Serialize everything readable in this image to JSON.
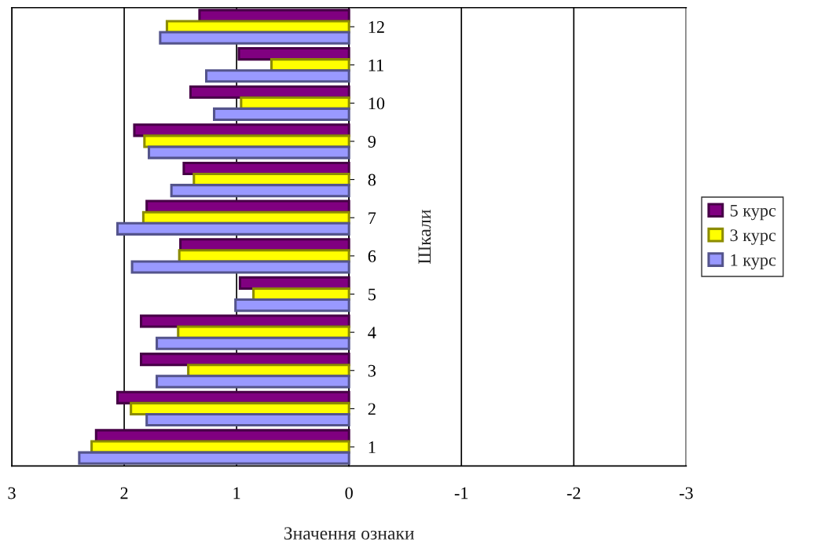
{
  "chart_data": {
    "type": "bar",
    "orientation": "horizontal",
    "xlabel": "Значення ознаки",
    "ylabel": "Шкали",
    "categories": [
      "12",
      "11",
      "10",
      "9",
      "8",
      "7",
      "6",
      "5",
      "4",
      "3",
      "2",
      "1"
    ],
    "series": [
      {
        "name": "5 курс",
        "color": "#800080",
        "values": [
          1.33,
          0.98,
          1.41,
          1.91,
          1.47,
          1.8,
          1.5,
          0.97,
          1.85,
          1.85,
          2.06,
          2.25
        ]
      },
      {
        "name": "3 курс",
        "color": "#ffff00",
        "values": [
          1.62,
          0.69,
          0.96,
          1.82,
          1.38,
          1.83,
          1.51,
          0.85,
          1.52,
          1.43,
          1.94,
          2.29
        ]
      },
      {
        "name": "1 курс",
        "color": "#9999ff",
        "values": [
          1.68,
          1.27,
          1.2,
          1.78,
          1.58,
          2.06,
          1.93,
          1.01,
          1.71,
          1.71,
          1.8,
          2.4
        ]
      }
    ],
    "xlim": [
      3,
      -3
    ],
    "xticks": [
      3,
      2,
      1,
      0,
      -1,
      -2,
      -3
    ],
    "grid": "x",
    "legend": "right"
  }
}
